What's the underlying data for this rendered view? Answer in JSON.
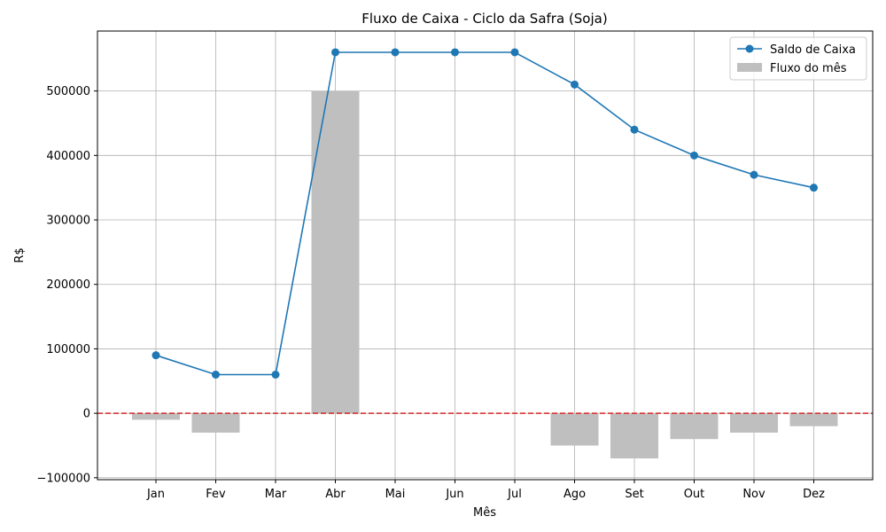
{
  "chart_data": {
    "type": "bar+line",
    "title": "Fluxo de Caixa - Ciclo da Safra (Soja)",
    "xlabel": "Mês",
    "ylabel": "R$",
    "categories": [
      "Jan",
      "Fev",
      "Mar",
      "Abr",
      "Mai",
      "Jun",
      "Jul",
      "Ago",
      "Set",
      "Out",
      "Nov",
      "Dez"
    ],
    "series": [
      {
        "name": "Saldo de Caixa",
        "type": "line",
        "color": "#1f77b4",
        "values": [
          90000,
          60000,
          60000,
          560000,
          560000,
          560000,
          560000,
          510000,
          440000,
          400000,
          370000,
          350000
        ]
      },
      {
        "name": "Fluxo do mês",
        "type": "bar",
        "color": "#bfbfbf",
        "values": [
          -10000,
          -30000,
          0,
          500000,
          0,
          0,
          0,
          -50000,
          -70000,
          -40000,
          -30000,
          -20000
        ]
      }
    ],
    "yticks": [
      -100000,
      0,
      100000,
      200000,
      300000,
      400000,
      500000
    ],
    "ytick_labels": [
      "−100000",
      "0",
      "100000",
      "200000",
      "300000",
      "400000",
      "500000"
    ],
    "ylim": [
      -103000,
      593000
    ],
    "reference_line": {
      "y": 0,
      "color": "#d62728",
      "style": "dashed"
    },
    "grid": true,
    "legend_position": "top-right"
  }
}
